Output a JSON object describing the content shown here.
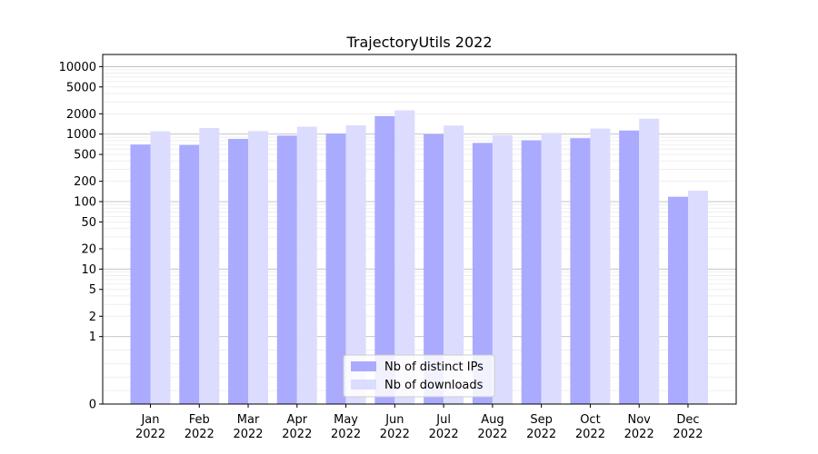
{
  "chart_data": {
    "type": "bar",
    "title": "TrajectoryUtils 2022",
    "xlabel": "",
    "ylabel": "",
    "yscale": "symlog",
    "ylim": [
      0,
      10000
    ],
    "y_ticks": [
      "0",
      "1",
      "2",
      "5",
      "10",
      "20",
      "50",
      "100",
      "200",
      "500",
      "1000",
      "2000",
      "5000",
      "10000"
    ],
    "categories": [
      "Jan\n2022",
      "Feb\n2022",
      "Mar\n2022",
      "Apr\n2022",
      "May\n2022",
      "Jun\n2022",
      "Jul\n2022",
      "Aug\n2022",
      "Sep\n2022",
      "Oct\n2022",
      "Nov\n2022",
      "Dec\n2022"
    ],
    "series": [
      {
        "name": "Nb of distinct IPs",
        "color": "#aaaaff",
        "values": [
          700,
          690,
          850,
          950,
          1020,
          1850,
          1000,
          740,
          810,
          870,
          1130,
          118
        ]
      },
      {
        "name": "Nb of downloads",
        "color": "#dcdcff",
        "values": [
          1100,
          1230,
          1110,
          1290,
          1350,
          2250,
          1340,
          960,
          1040,
          1210,
          1690,
          145
        ]
      }
    ],
    "grid": true,
    "legend_position": "bottom-center"
  }
}
